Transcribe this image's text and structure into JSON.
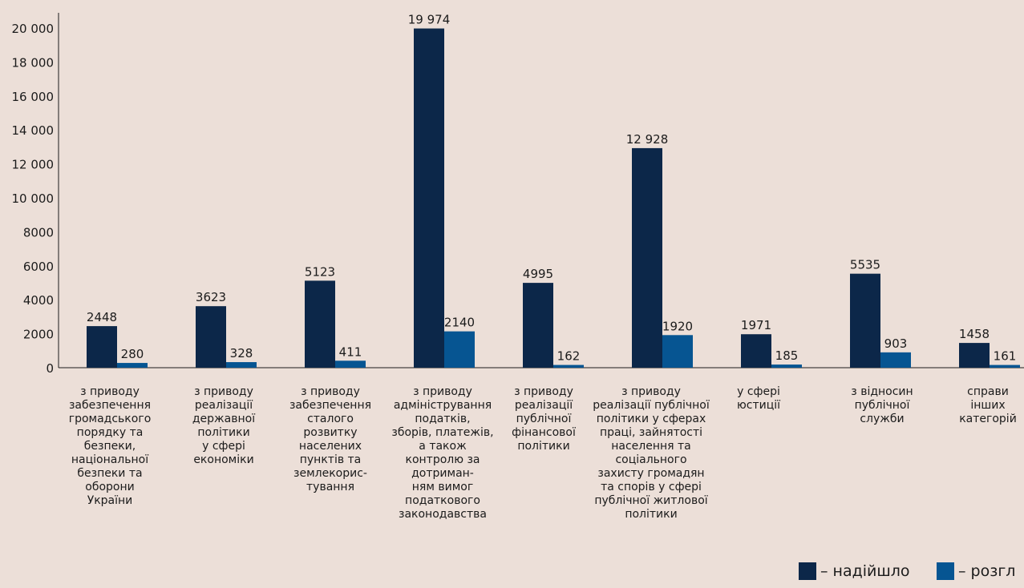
{
  "chart_data": {
    "type": "bar",
    "ylim": [
      0,
      20000
    ],
    "yticks": [
      0,
      2000,
      4000,
      6000,
      8000,
      10000,
      12000,
      14000,
      16000,
      18000,
      20000
    ],
    "ytick_labels": [
      "0",
      "2000",
      "4000",
      "6000",
      "8000",
      "10 000",
      "12 000",
      "14 000",
      "16 000",
      "18 000",
      "20 000"
    ],
    "grid": false,
    "legend_position": "bottom-right",
    "colors": {
      "received": "#0c2749",
      "reviewed": "#065592",
      "background": "#ecdfd8"
    },
    "categories": [
      "з приводу\nзабезпечення\nгромадського\nпорядку та\nбезпеки,\nнаціональної\nбезпеки та\nоборони\nУкраїни",
      "з приводу\nреалізації\nдержавної\nполітики\nу сфері\nекономіки",
      "з приводу\nзабезпечення\nсталого\nрозвитку\nнаселених\nпунктів та\nземлекорис-\nтування",
      "з приводу\nадміністрування\nподатків,\nзборів, платежів,\nа також\nконтролю за\nдотриман-\nням вимог\nподаткового\nзаконодавства",
      "з приводу\nреалізації\nпублічної\nфінансової\nполітики",
      "з приводу\nреалізації публічної\nполітики у сферах\nпраці, зайнятості\nнаселення та\nсоціального\nзахисту громадян\nта спорів у сфері\nпублічної житлової\nполітики",
      "у сфері\nюстиції",
      "з відносин\nпублічної\nслужби",
      "справи\nінших\nкатегорій"
    ],
    "series": [
      {
        "name": "надійшло",
        "values": [
          2448,
          3623,
          5123,
          19974,
          4995,
          12928,
          1971,
          5535,
          1458
        ],
        "labels": [
          "2448",
          "3623",
          "5123",
          "19 974",
          "4995",
          "12 928",
          "1971",
          "5535",
          "1458"
        ]
      },
      {
        "name": "розгл",
        "values": [
          280,
          328,
          411,
          2140,
          162,
          1920,
          185,
          903,
          161
        ],
        "labels": [
          "280",
          "328",
          "411",
          "2140",
          "162",
          "1920",
          "185",
          "903",
          "161"
        ]
      }
    ],
    "legend": [
      {
        "label": "– надійшло",
        "color": "#0c2749"
      },
      {
        "label": "– розгл",
        "color": "#065592"
      }
    ]
  }
}
